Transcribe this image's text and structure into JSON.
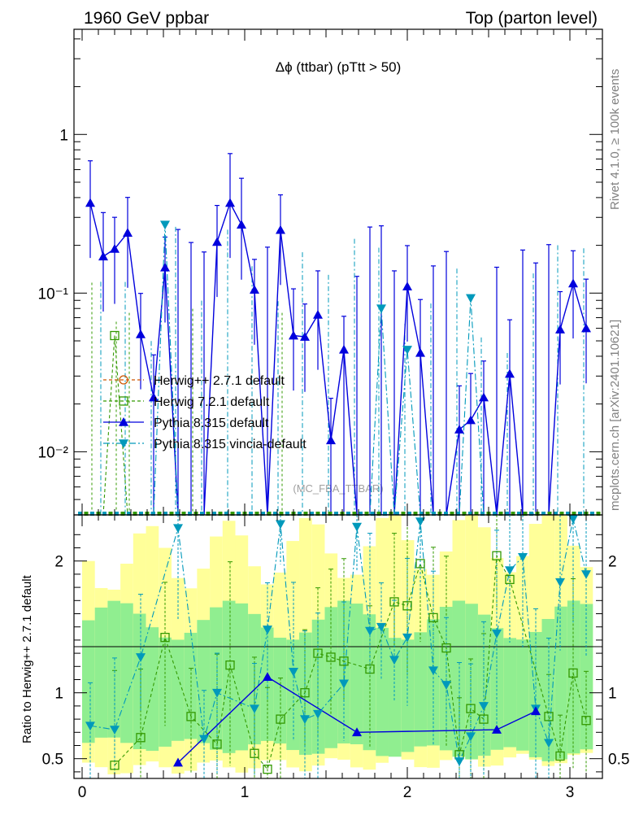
{
  "header": {
    "left": "1960 GeV ppbar",
    "right": "Top (parton level)"
  },
  "side_labels": {
    "rivet": "Rivet 4.1.0, ≥ 100k events",
    "mcplots": "mcplots.cern.ch [arXiv:2401.10621]"
  },
  "colors": {
    "herwigpp": "#cc5500",
    "herwig7": "#339900",
    "pythia": "#0000dd",
    "vincia": "#0099bb",
    "band_green": "#90ee90",
    "band_yellow": "#ffff99"
  },
  "chart_data": [
    {
      "type": "line",
      "title": "Δϕ (ttbar) (pTtt > 50)",
      "watermark": "(MC_FBA_TTBAR)",
      "yscale": "log",
      "xlim": [
        -0.05,
        3.2
      ],
      "ylim": [
        0.004,
        4.6
      ],
      "y_ticks": [
        {
          "value": 0.01,
          "label": "10⁻²"
        },
        {
          "value": 0.1,
          "label": "10⁻¹"
        },
        {
          "value": 1,
          "label": "1"
        }
      ],
      "legend": [
        {
          "label": "Herwig++ 2.7.1 default",
          "marker": "circle-open",
          "color": "#cc5500",
          "dash": "4,3"
        },
        {
          "label": "Herwig 7.2.1 default",
          "marker": "square-open",
          "color": "#339900",
          "dash": "4,3"
        },
        {
          "label": "Pythia 8.315 default",
          "marker": "triangle-up",
          "color": "#0000dd",
          "dash": ""
        },
        {
          "label": "Pythia 8.315 vincia-default",
          "marker": "triangle-down",
          "color": "#0099bb",
          "dash": "8,3,2,3"
        }
      ],
      "series": [
        {
          "name": "Pythia 8.315 default",
          "x": [
            0.05,
            0.13,
            0.2,
            0.28,
            0.36,
            0.44,
            0.51,
            0.59,
            0.67,
            0.75,
            0.83,
            0.91,
            0.98,
            1.06,
            1.14,
            1.22,
            1.3,
            1.37,
            1.45,
            1.53,
            1.61,
            1.69,
            1.77,
            1.84,
            1.92,
            2.0,
            2.08,
            2.16,
            2.24,
            2.32,
            2.39,
            2.47,
            2.55,
            2.63,
            2.71,
            2.79,
            2.87,
            2.94,
            3.02,
            3.1
          ],
          "values": [
            0.37,
            0.17,
            0.19,
            0.24,
            0.055,
            0.022,
            0.145,
            0.004,
            0.004,
            0.004,
            0.21,
            0.37,
            0.27,
            0.105,
            0.004,
            0.25,
            0.054,
            0.053,
            0.073,
            0.0118,
            0.044,
            0.004,
            0.004,
            0.004,
            0.004,
            0.11,
            0.042,
            0.004,
            0.004,
            0.0138,
            0.0158,
            0.022,
            0.004,
            0.031,
            0.004,
            0.004,
            0.004,
            0.059,
            0.115,
            0.06
          ]
        },
        {
          "name": "Pythia 8.315 vincia-default",
          "x": [
            0.51,
            1.84,
            2.0,
            2.39
          ],
          "values": [
            0.27,
            0.08,
            0.044,
            0.093
          ]
        },
        {
          "name": "Herwig 7.2.1 default",
          "x": [
            0.2
          ],
          "values": [
            0.054
          ]
        }
      ]
    },
    {
      "type": "band",
      "ylabel": "Ratio to Herwig++ 2.7.1 default",
      "xlim": [
        -0.05,
        3.2
      ],
      "ylim": [
        0.35,
        2.35
      ],
      "x_ticks": [
        0,
        1,
        2,
        3
      ],
      "y_ticks": [
        0.5,
        1,
        2
      ],
      "series": [
        {
          "name": "Herwig 7.2.1 default",
          "x": [
            0.2,
            0.36,
            0.51,
            0.67,
            0.83,
            0.91,
            1.06,
            1.14,
            1.22,
            1.37,
            1.45,
            1.53,
            1.61,
            1.77,
            1.92,
            2.0,
            2.08,
            2.16,
            2.24,
            2.32,
            2.39,
            2.47,
            2.55,
            2.63,
            2.87,
            2.94,
            3.02,
            3.1
          ],
          "values": [
            0.45,
            0.66,
            1.42,
            0.82,
            0.61,
            1.21,
            0.54,
            0.42,
            0.8,
            1.0,
            1.3,
            1.27,
            1.24,
            1.18,
            1.69,
            1.66,
            1.98,
            1.57,
            1.34,
            0.53,
            0.88,
            0.8,
            2.04,
            1.86,
            0.82,
            0.52,
            1.15,
            0.79
          ]
        },
        {
          "name": "Pythia 8.315 vincia-default",
          "x": [
            0.05,
            0.2,
            0.36,
            0.59,
            0.75,
            0.83,
            1.06,
            1.14,
            1.22,
            1.3,
            1.37,
            1.45,
            1.61,
            1.69,
            1.77,
            1.84,
            1.92,
            2.0,
            2.08,
            2.16,
            2.24,
            2.32,
            2.39,
            2.47,
            2.55,
            2.63,
            2.71,
            2.79,
            2.87,
            2.94,
            3.02,
            3.1
          ],
          "values": [
            0.75,
            0.72,
            1.27,
            2.25,
            0.65,
            1.0,
            0.88,
            1.48,
            2.28,
            1.16,
            0.8,
            0.84,
            1.07,
            2.26,
            1.47,
            1.5,
            1.25,
            1.42,
            2.3,
            1.17,
            1.06,
            0.48,
            0.67,
            0.9,
            1.45,
            1.93,
            2.03,
            0.88,
            0.62,
            1.84,
            2.32,
            1.9
          ]
        },
        {
          "name": "Pythia 8.315 default",
          "x": [
            0.59,
            1.14,
            1.69,
            2.55,
            2.79
          ],
          "values": [
            0.47,
            1.12,
            0.7,
            0.72,
            0.86
          ]
        }
      ]
    }
  ]
}
